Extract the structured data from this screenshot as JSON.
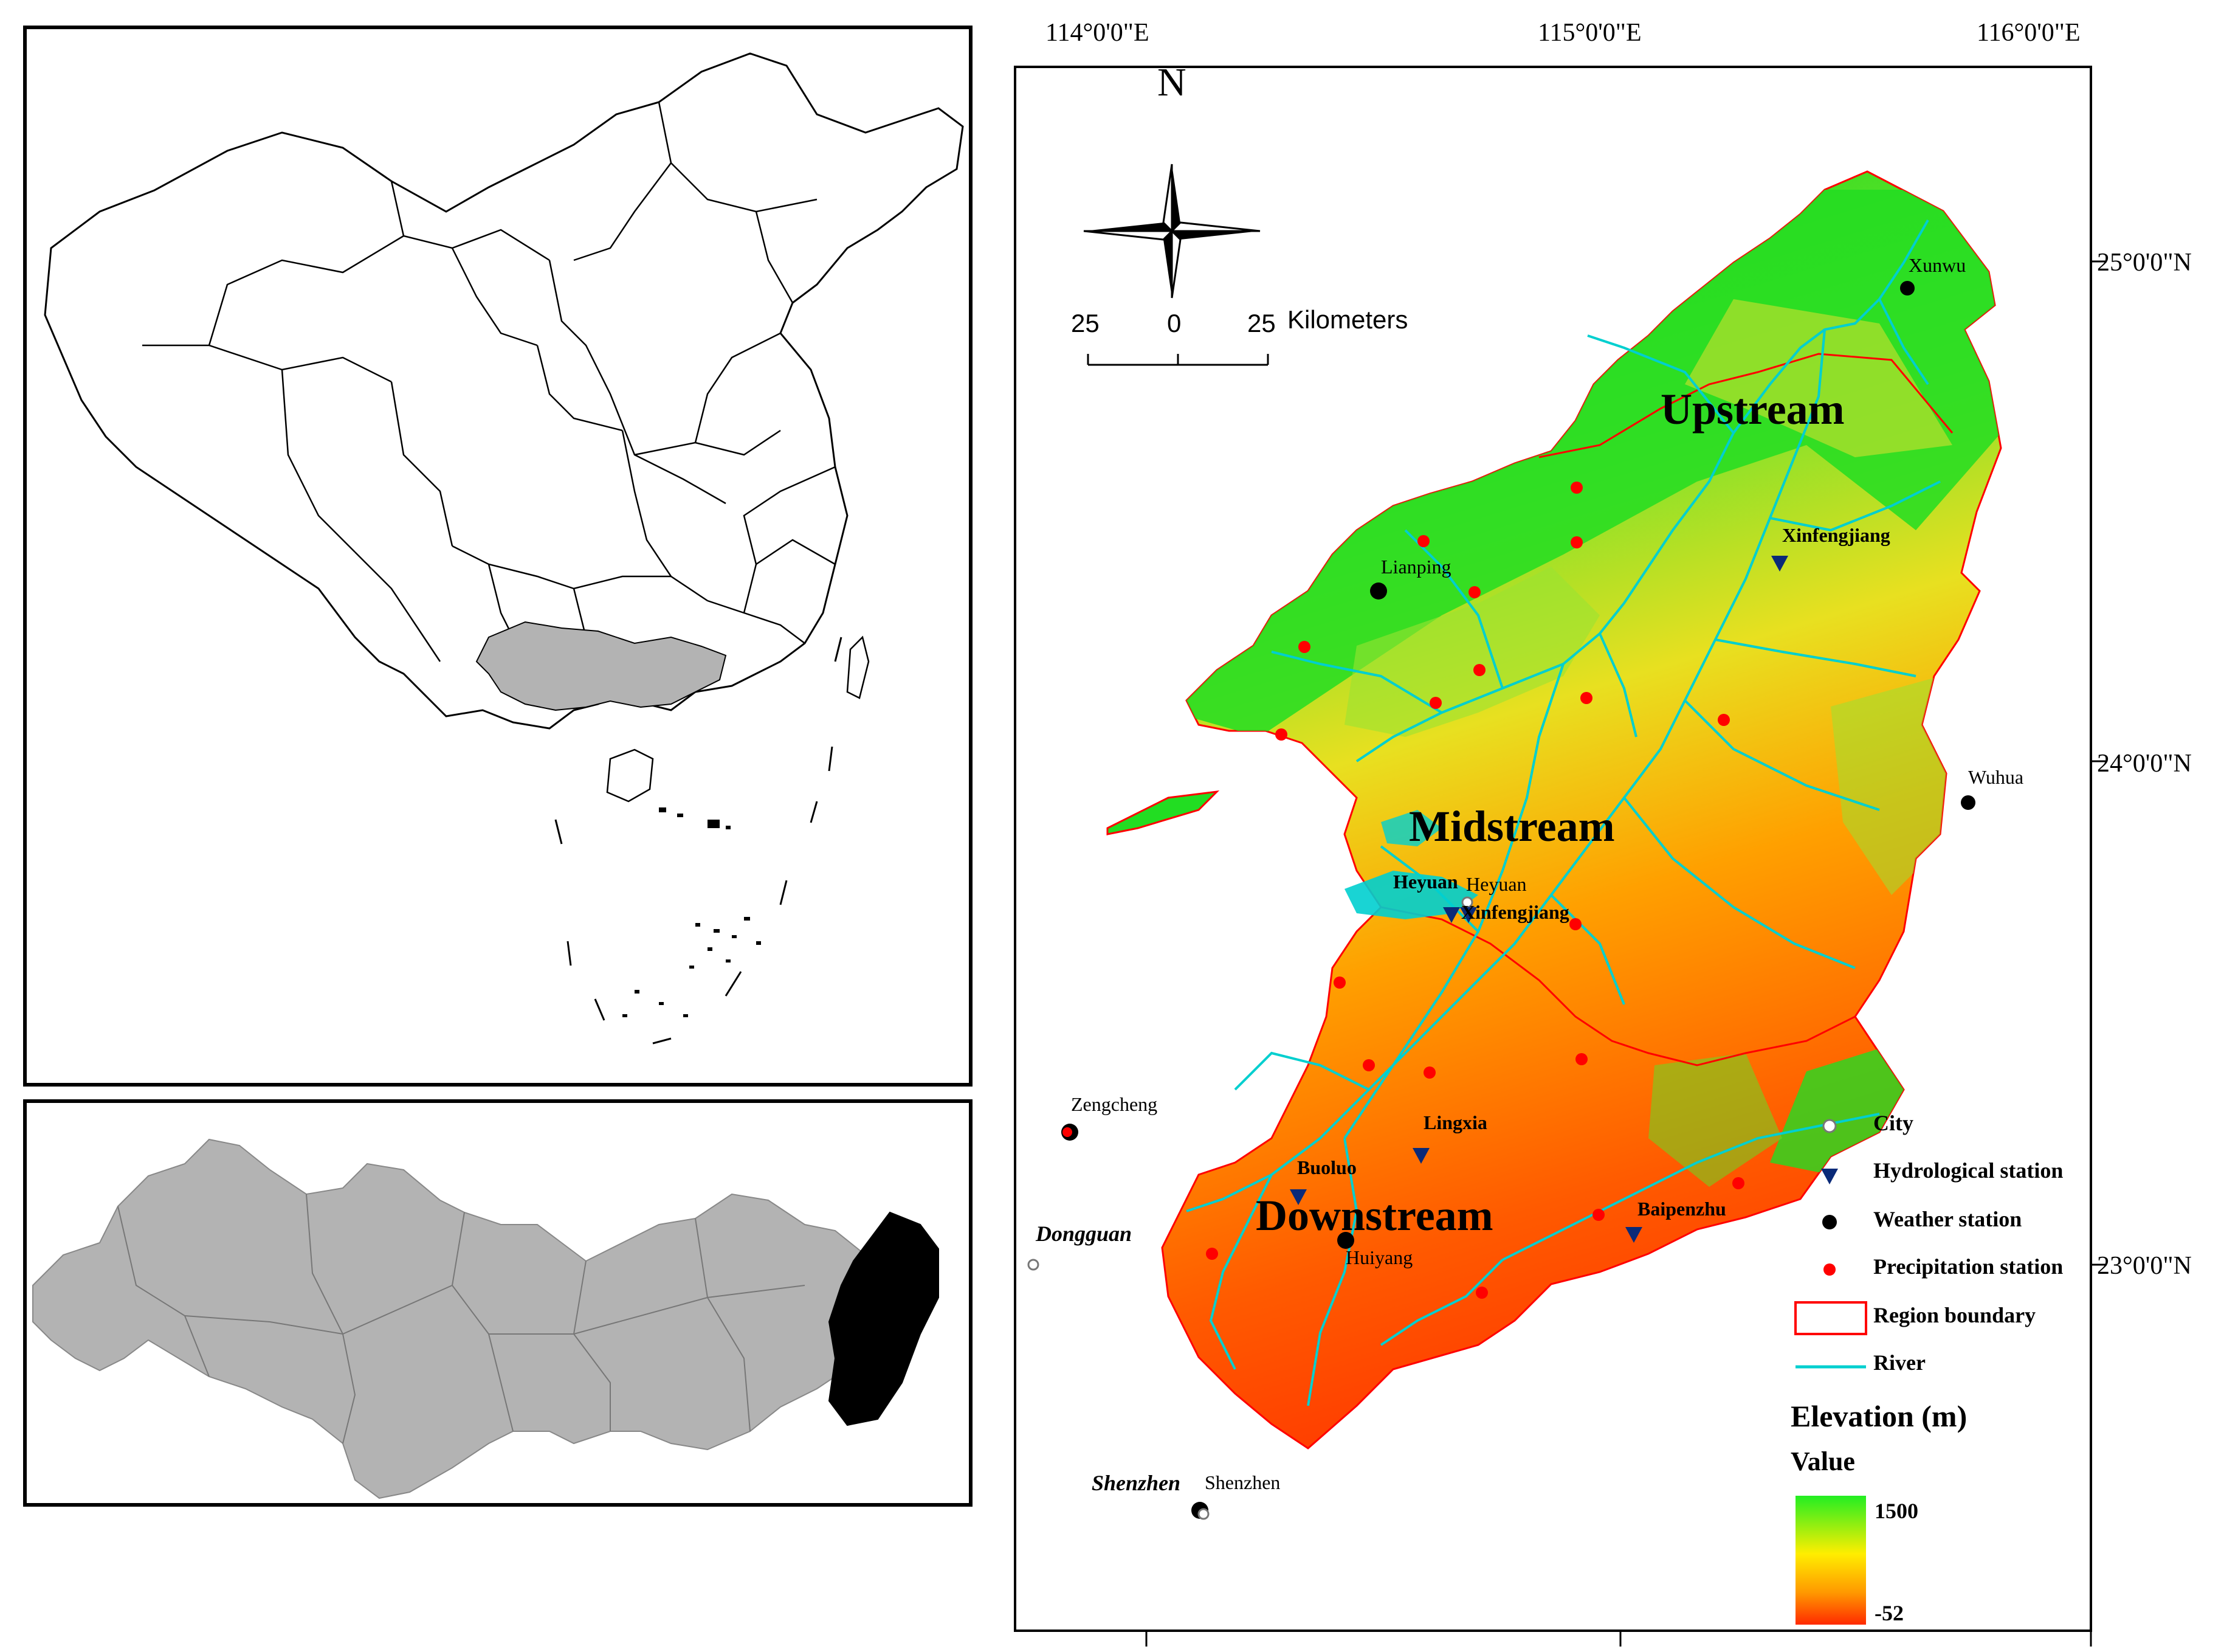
{
  "coordinates": {
    "lon": [
      "114°0'0\"E",
      "115°0'0\"E",
      "116°0'0\"E"
    ],
    "lat": [
      "25°0'0\"N",
      "24°0'0\"N",
      "23°0'0\"N"
    ]
  },
  "compass": {
    "north": "N"
  },
  "scale_bar": {
    "left": "25",
    "center": "0",
    "right": "25",
    "unit": "Kilometers"
  },
  "regions": {
    "upstream": "Upstream",
    "midstream": "Midstream",
    "downstream": "Downstream"
  },
  "places": {
    "xunwu": "Xunwu",
    "lianping": "Lianping",
    "wuhua": "Wuhua",
    "heyuan_city": "Heyuan",
    "zengcheng": "Zengcheng",
    "dongguan": "Dongguan",
    "huiyang": "Huiyang",
    "shenzhen": "Shenzhen",
    "shenzhen_city": "Shenzhen"
  },
  "stations": {
    "xinfengjiang_up": "Xinfengjiang",
    "heyuan": "Heyuan",
    "xinfengjiang_mid": "Xinfengjiang",
    "lingxia": "Lingxia",
    "buoluo": "Buoluo",
    "baipenzhu": "Baipenzhu"
  },
  "legend": {
    "items": [
      "City",
      "Hydrological station",
      "Weather station",
      "Precipitation station",
      "Region boundary",
      "River"
    ],
    "elevation_title": "Elevation (m)",
    "value_label": "Value",
    "max": "1500",
    "min": "-52",
    "colors": {
      "high": "#22ee22",
      "mid": "#ffee00",
      "orange": "#ff9900",
      "low": "#ff2a00"
    }
  },
  "colors": {
    "region_boundary": "#ff0000",
    "river": "#00cfcf",
    "hydro_station": "#0a2a78",
    "weather_station": "#000000",
    "precip_station": "#ff0000",
    "basin_fill": "#b3b3b3",
    "study_area_fill": "#000000",
    "highlight_province_fill": "#b3b3b3"
  }
}
